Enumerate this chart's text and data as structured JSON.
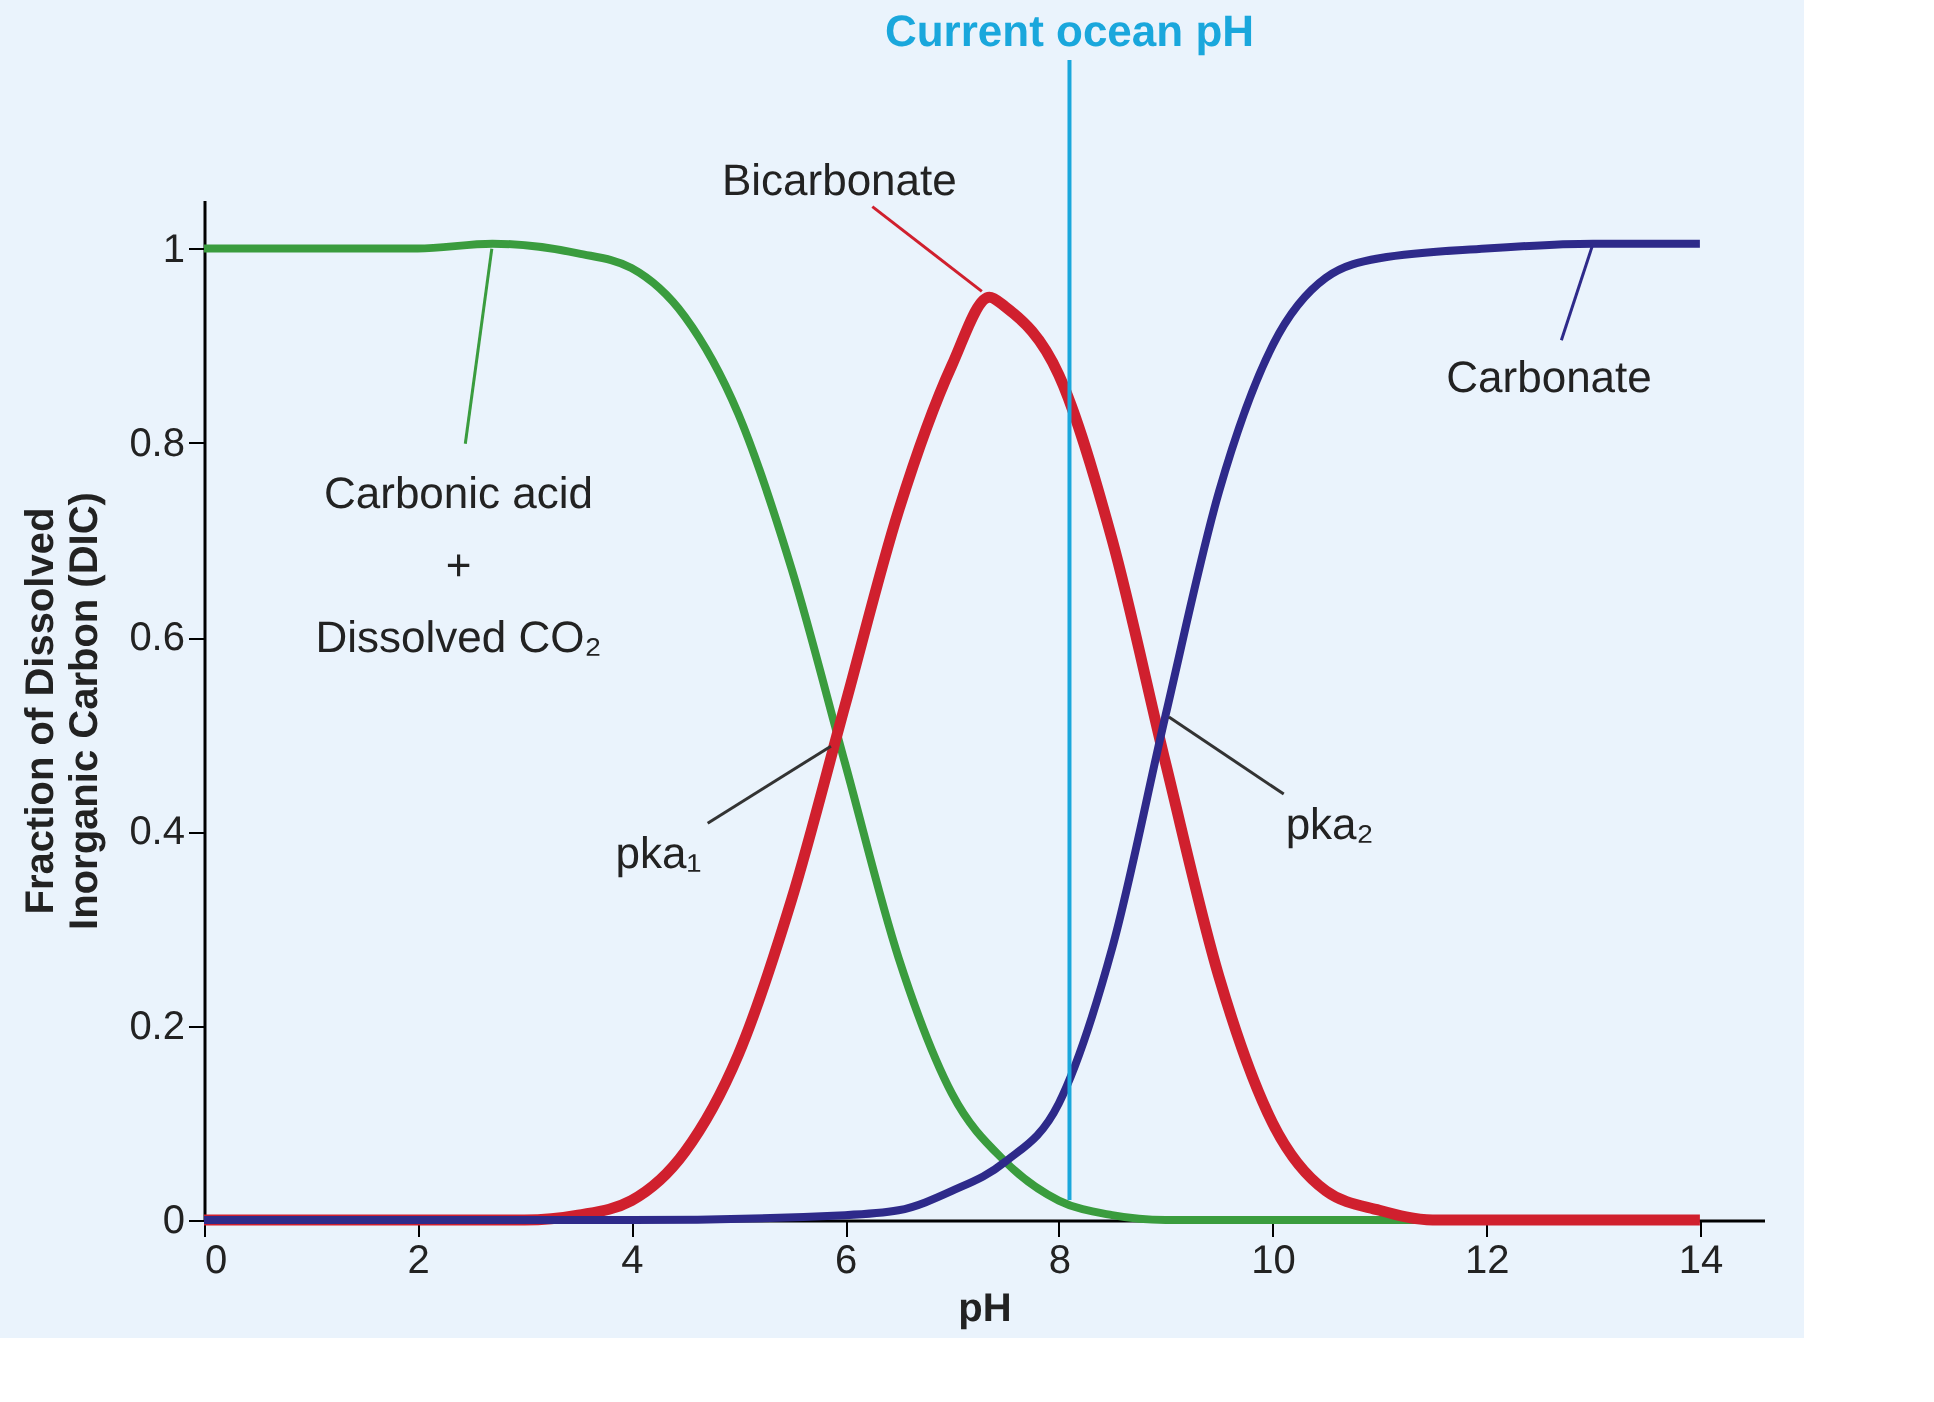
{
  "chart_data": {
    "type": "line",
    "xlabel": "pH",
    "ylabel": "Fraction of Dissolved\nInorganic Carbon (DIC)",
    "xlim": [
      0,
      14.6
    ],
    "ylim": [
      0,
      1.05
    ],
    "xticks": [
      0,
      2,
      4,
      6,
      8,
      10,
      12,
      14
    ],
    "yticks": [
      {
        "value": 0,
        "label": "0"
      },
      0.2,
      0.4,
      0.6,
      0.8,
      {
        "value": 1,
        "label": "1"
      }
    ],
    "grid": false,
    "marker": "none",
    "line_style": "solid",
    "series": [
      {
        "color": "#3a9c3e",
        "x": [
          0,
          1,
          2,
          2.7,
          3.5,
          4,
          4.5,
          5,
          5.5,
          6,
          6.5,
          7,
          7.5,
          8,
          8.5,
          9,
          10,
          11,
          12
        ],
        "values": [
          1.0,
          1.0,
          1.0,
          1.005,
          0.995,
          0.98,
          0.93,
          0.83,
          0.67,
          0.47,
          0.27,
          0.13,
          0.06,
          0.02,
          0.005,
          0,
          0,
          0,
          0
        ]
      },
      {
        "color": "#d0202e",
        "x": [
          0,
          1,
          2,
          3,
          3.5,
          4,
          4.5,
          5,
          5.5,
          6,
          6.5,
          7,
          7.35,
          7.5,
          8,
          8.5,
          9,
          9.5,
          10,
          10.5,
          11,
          11.5,
          12,
          13,
          14
        ],
        "values": [
          0,
          0,
          0,
          0,
          0.005,
          0.02,
          0.07,
          0.17,
          0.33,
          0.53,
          0.73,
          0.88,
          0.95,
          0.94,
          0.87,
          0.7,
          0.47,
          0.25,
          0.1,
          0.03,
          0.01,
          0,
          0,
          0,
          0
        ]
      },
      {
        "color": "#2e2a8a",
        "x": [
          0,
          2,
          4,
          6,
          6.5,
          7,
          7.5,
          8,
          8.5,
          9,
          9.5,
          10,
          10.5,
          11,
          12,
          13,
          14
        ],
        "values": [
          0,
          0,
          0,
          0.005,
          0.01,
          0.03,
          0.06,
          0.12,
          0.28,
          0.52,
          0.75,
          0.9,
          0.97,
          0.99,
          1.0,
          1.005,
          1.005
        ]
      }
    ],
    "ref_lines": [
      {
        "axis": "x",
        "value": 8.1,
        "label": "Current ocean pH",
        "color": "#1aa7dc"
      }
    ],
    "annotations": [
      {
        "text": "Carbonic acid\n+\nDissolved CO₂",
        "x": 2.7,
        "y": 1.005
      },
      {
        "text": "Bicarbonate",
        "x": 7.35,
        "y": 0.95
      },
      {
        "text": "Carbonate",
        "x": 13,
        "y": 1.005
      },
      {
        "text": "pka₁",
        "x": 5.9,
        "y": 0.49
      },
      {
        "text": "pka₂",
        "x": 9,
        "y": 0.52
      }
    ]
  }
}
